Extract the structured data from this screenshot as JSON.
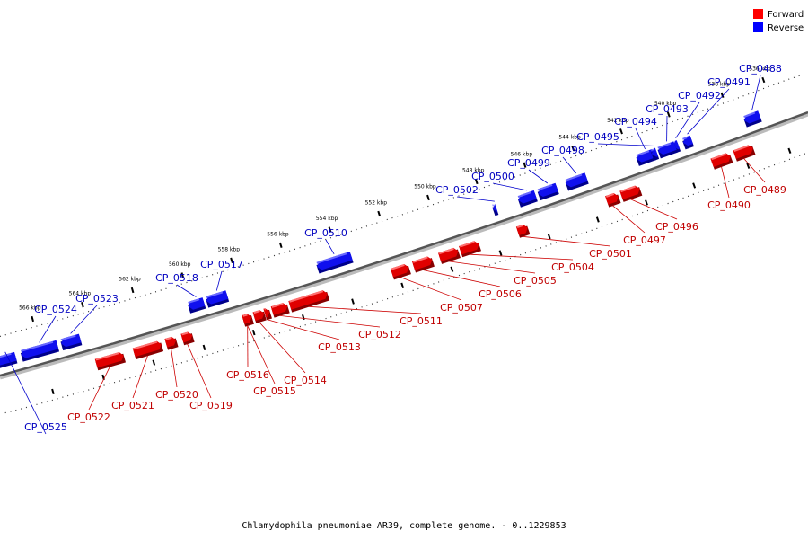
{
  "legend": {
    "forward_label": "Forward",
    "reverse_label": "Reverse",
    "forward_color": "#ff0000",
    "reverse_color": "#0000ff"
  },
  "caption": "Chlamydophila pneumoniae AR39, complete genome. - 0..1229853",
  "tick_labels": [
    "536 kbp",
    "538 kbp",
    "540 kbp",
    "542 kbp",
    "544 kbp",
    "546 kbp",
    "548 kbp",
    "550 kbp",
    "552 kbp",
    "554 kbp",
    "556 kbp",
    "558 kbp",
    "560 kbp",
    "562 kbp",
    "564 kbp",
    "566 kbp"
  ],
  "genes": {
    "forward": [
      "CP_0489",
      "CP_0490",
      "CP_0496",
      "CP_0497",
      "CP_0501",
      "CP_0504",
      "CP_0505",
      "CP_0506",
      "CP_0507",
      "CP_0511",
      "CP_0512",
      "CP_0513",
      "CP_0514",
      "CP_0515",
      "CP_0516",
      "CP_0519",
      "CP_0520",
      "CP_0521",
      "CP_0522"
    ],
    "reverse": [
      "CP_0488",
      "CP_0491",
      "CP_0492",
      "CP_0493",
      "CP_0494",
      "CP_0495",
      "CP_0498",
      "CP_0499",
      "CP_0500",
      "CP_0502",
      "CP_0510",
      "CP_0517",
      "CP_0518",
      "CP_0523",
      "CP_0524",
      "CP_0525"
    ]
  }
}
